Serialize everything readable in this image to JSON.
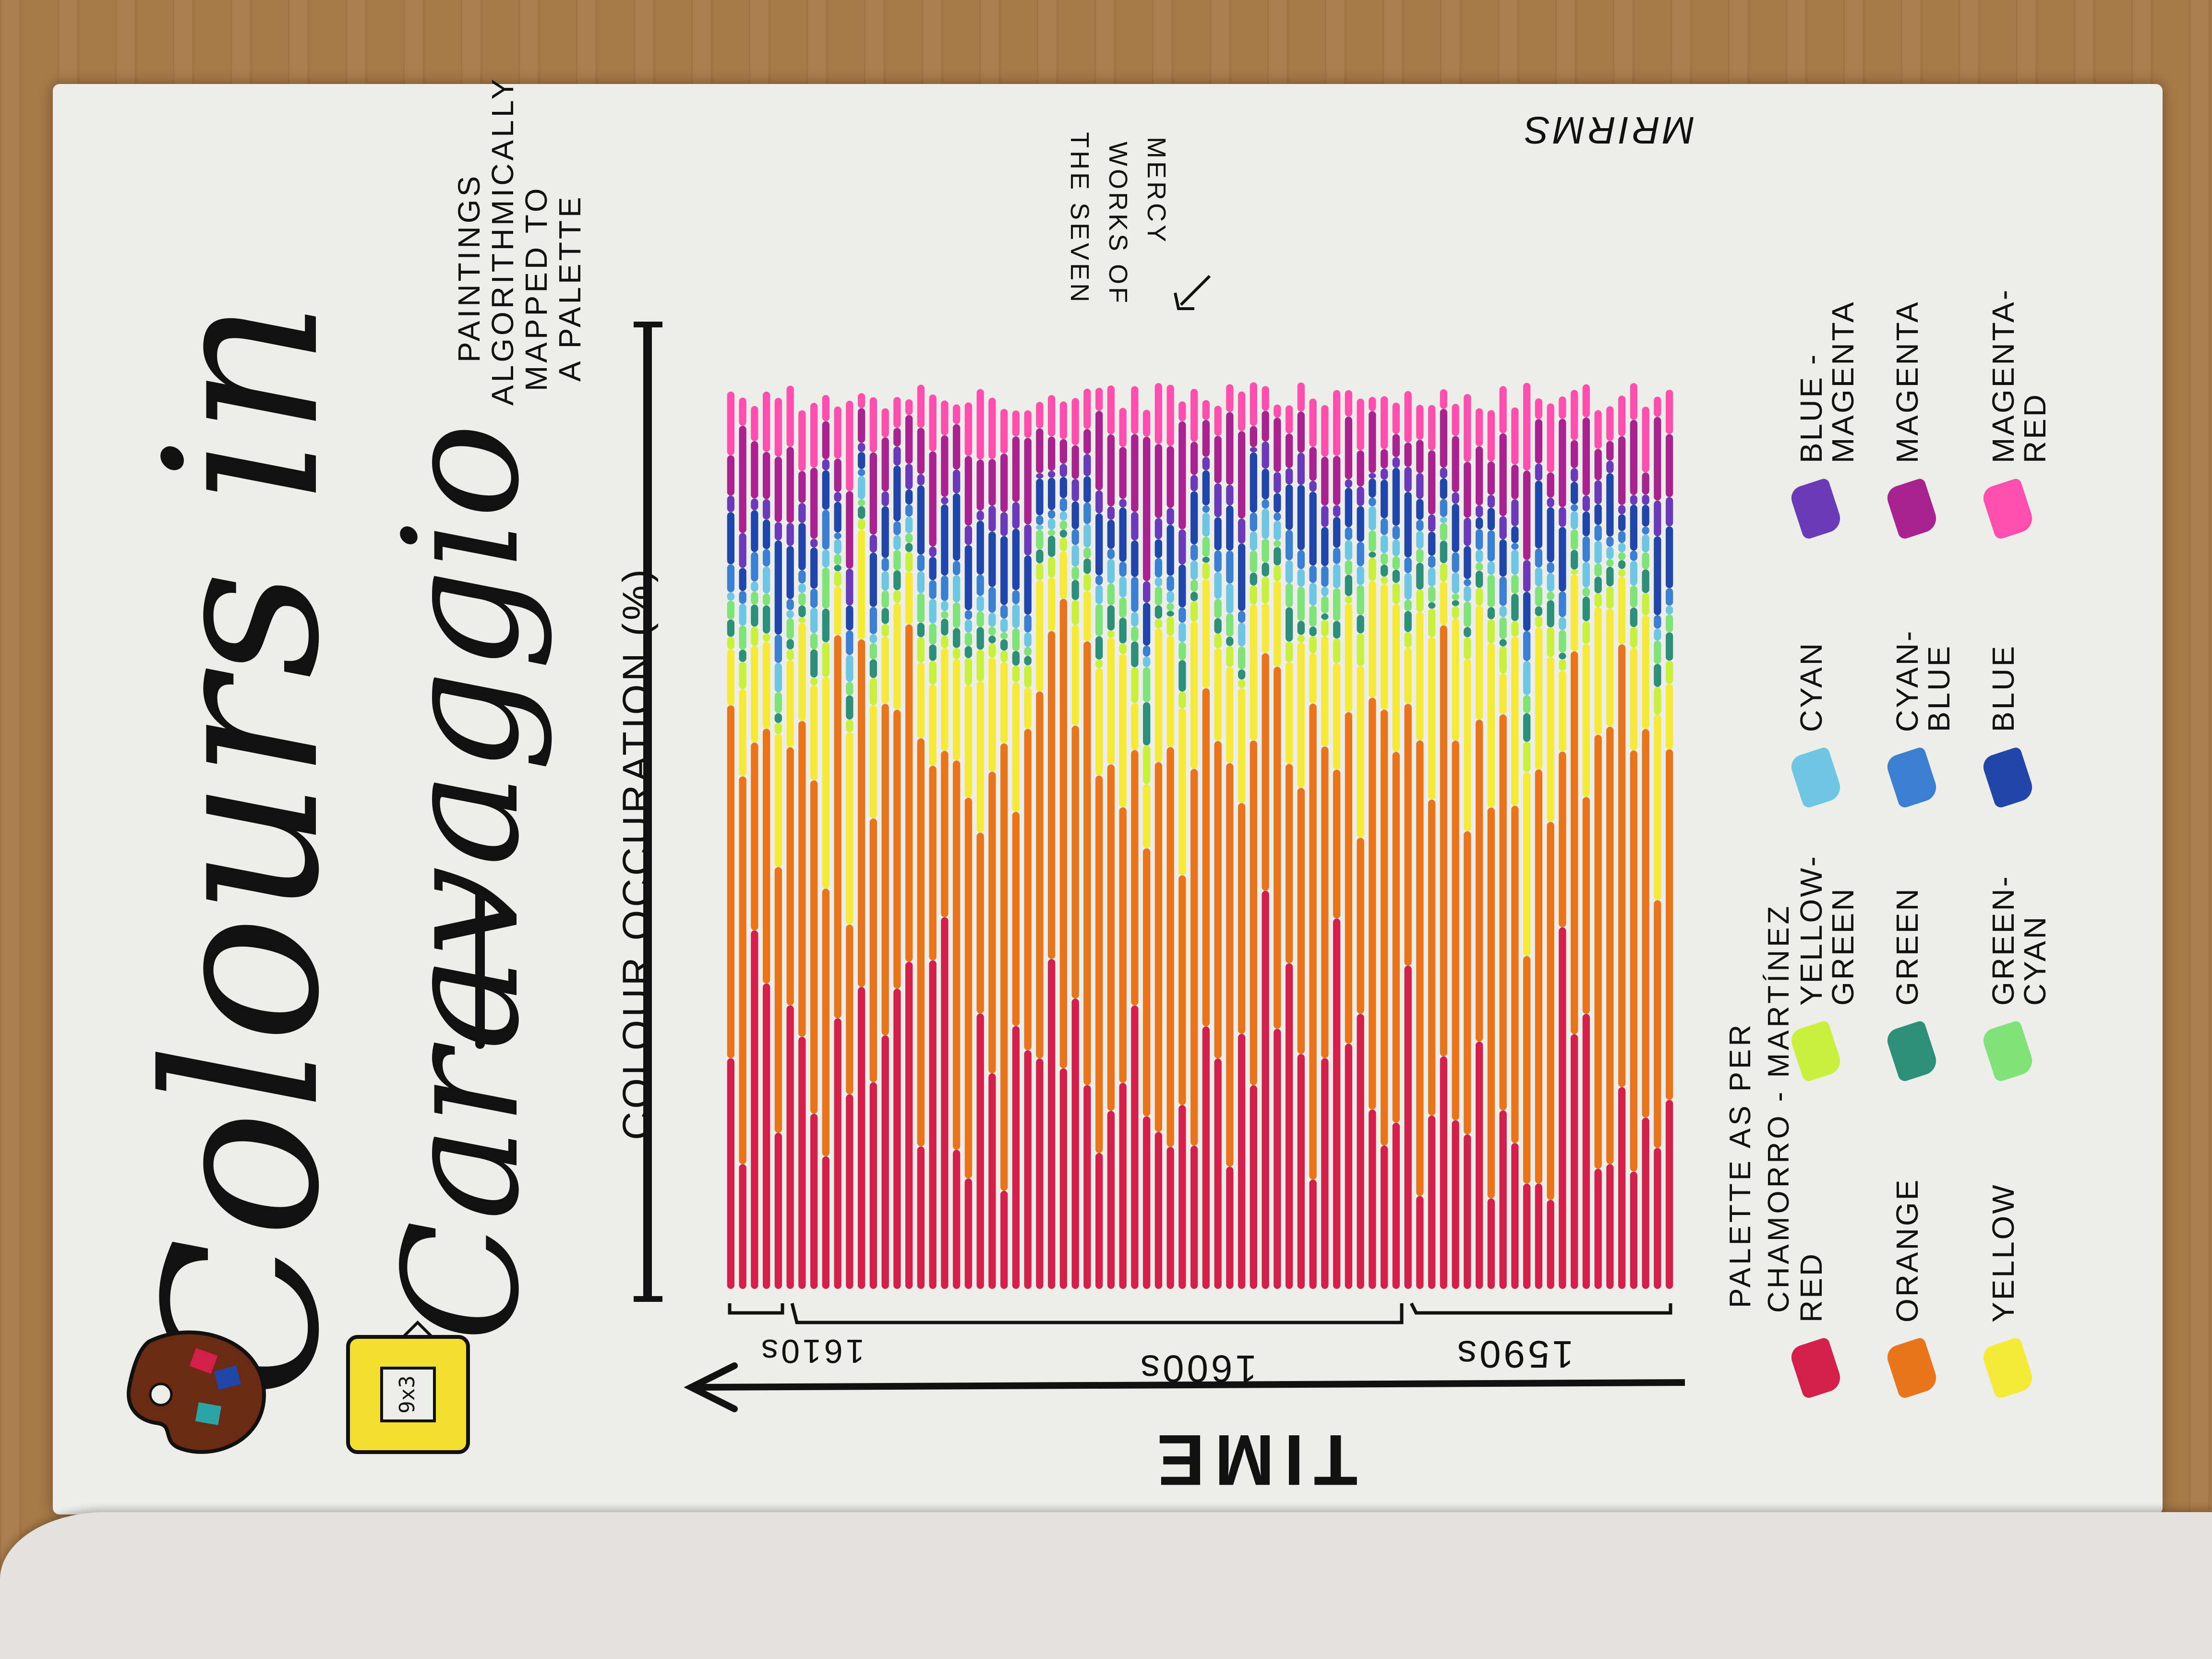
{
  "title": {
    "line1": "Colours in",
    "line2": "Caravaggio"
  },
  "subtitle": [
    "PAINTINGS",
    "ALGORITHMICALLY",
    "MAPPED TO",
    "A PALETTE"
  ],
  "signature": "MRIRMS",
  "annotation": [
    "THE SEVEN",
    "WORKS OF",
    "MERCY"
  ],
  "palette_note": [
    "PALETTE AS PER",
    "CHAMORRO - MARTÍNEZ"
  ],
  "colors": {
    "red": "#d3204a",
    "orange": "#e8741c",
    "yellow": "#f5ea3a",
    "yellow_green": "#c8f03c",
    "green": "#2e8f78",
    "green_cyan": "#7fe37a",
    "cyan": "#6ec6e2",
    "cyan_blue": "#3a7fd0",
    "blue": "#1f46a8",
    "blue_magenta": "#6a3ab8",
    "magenta": "#a8238f",
    "magenta_red": "#ff4fae"
  },
  "legend": [
    {
      "label": "RED",
      "color_key": "red"
    },
    {
      "label": "ORANGE",
      "color_key": "orange"
    },
    {
      "label": "YELLOW",
      "color_key": "yellow"
    },
    {
      "label": "YELLOW-\nGREEN",
      "color_key": "yellow_green"
    },
    {
      "label": "GREEN",
      "color_key": "green"
    },
    {
      "label": "GREEN-\nCYAN",
      "color_key": "green_cyan"
    },
    {
      "label": "CYAN",
      "color_key": "cyan"
    },
    {
      "label": "CYAN-\nBLUE",
      "color_key": "cyan_blue"
    },
    {
      "label": "BLUE",
      "color_key": "blue"
    },
    {
      "label": "BLUE -\nMAGENTA",
      "color_key": "blue_magenta"
    },
    {
      "label": "MAGENTA",
      "color_key": "magenta"
    },
    {
      "label": "MAGENTA-\nRED",
      "color_key": "magenta_red"
    }
  ],
  "frame_label": "9x3",
  "chart_data": {
    "type": "bar",
    "title": "Colours in Caravaggio",
    "stacked": true,
    "xlabel": "TIME",
    "ylabel": "COLOUR OCCURATION (%)",
    "x_direction": "right-to-left",
    "period_labels": [
      "1590s",
      "1600s",
      "1610s"
    ],
    "bar_count": 80,
    "series_order": [
      "red",
      "orange",
      "yellow",
      "yellow_green",
      "green",
      "green_cyan",
      "cyan",
      "cyan_blue",
      "blue",
      "blue_magenta",
      "magenta",
      "magenta_red"
    ],
    "ylim": [
      0,
      100
    ],
    "estimated_mean_share_pct": {
      "red": 25,
      "orange": 35,
      "yellow": 12,
      "yellow_green": 2,
      "green": 2,
      "green_cyan": 2,
      "cyan": 2,
      "cyan_blue": 2,
      "blue": 5,
      "blue_magenta": 2,
      "magenta": 6,
      "magenta_red": 5
    }
  }
}
